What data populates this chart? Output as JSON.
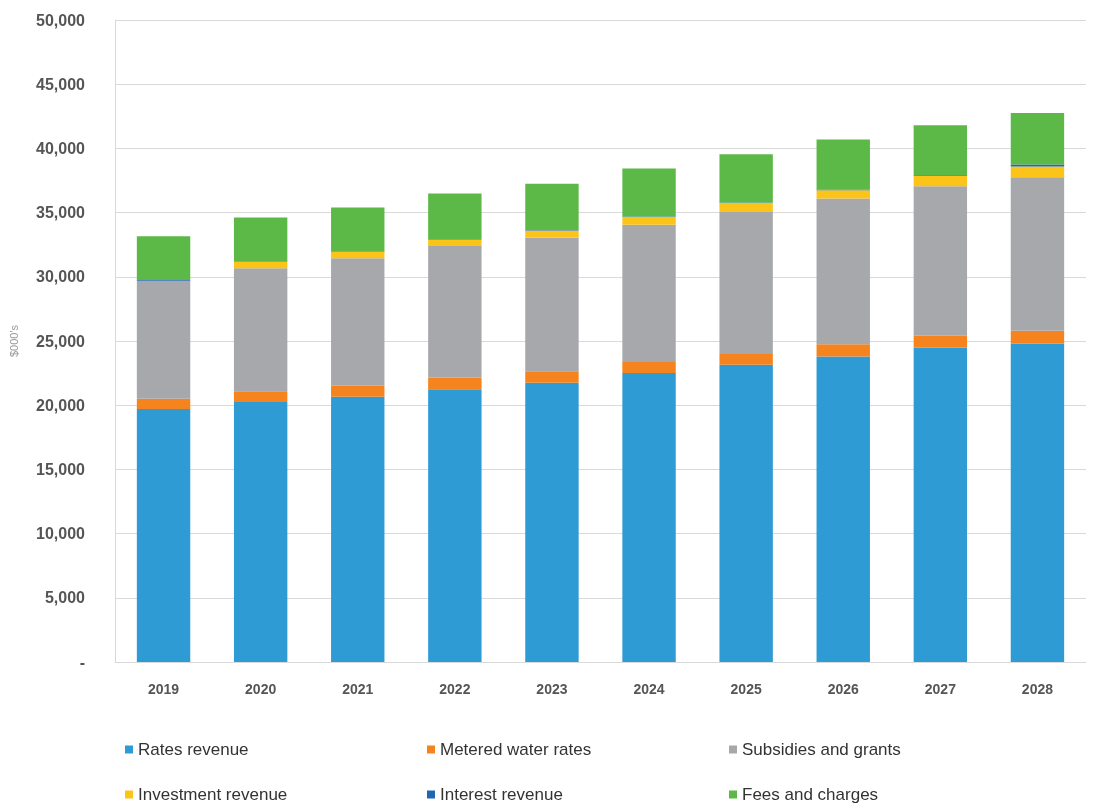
{
  "chart_data": {
    "type": "bar",
    "stacked": true,
    "ylabel": "$000's",
    "categories": [
      "2019",
      "2020",
      "2021",
      "2022",
      "2023",
      "2024",
      "2025",
      "2026",
      "2027",
      "2028"
    ],
    "series": [
      {
        "name": "Rates revenue",
        "color": "#2f9bd5",
        "values": [
          19700,
          20250,
          20650,
          21250,
          21750,
          22500,
          23150,
          23800,
          24500,
          24800
        ]
      },
      {
        "name": "Metered water rates",
        "color": "#f5841f",
        "values": [
          800,
          830,
          860,
          900,
          900,
          870,
          830,
          950,
          900,
          1000
        ]
      },
      {
        "name": "Subsidies and grants",
        "color": "#a6a8ab",
        "values": [
          9200,
          9590,
          9940,
          10250,
          10400,
          10680,
          11060,
          11350,
          11650,
          11950
        ]
      },
      {
        "name": "Investment revenue",
        "color": "#fcc419",
        "values": [
          0,
          500,
          480,
          500,
          550,
          600,
          700,
          650,
          800,
          850
        ]
      },
      {
        "name": "Interest revenue",
        "color": "#2266b3",
        "values": [
          50,
          50,
          50,
          50,
          50,
          50,
          50,
          50,
          50,
          150
        ]
      },
      {
        "name": "Fees and charges",
        "color": "#5db947",
        "values": [
          3400,
          3400,
          3420,
          3540,
          3600,
          3740,
          3750,
          3900,
          3900,
          4000
        ]
      }
    ],
    "ylim": [
      0,
      50000
    ],
    "yticks": [
      {
        "value": 0,
        "label": "-"
      },
      {
        "value": 5000,
        "label": "5,000"
      },
      {
        "value": 10000,
        "label": "10,000"
      },
      {
        "value": 15000,
        "label": "15,000"
      },
      {
        "value": 20000,
        "label": "20,000"
      },
      {
        "value": 25000,
        "label": "25,000"
      },
      {
        "value": 30000,
        "label": "30,000"
      },
      {
        "value": 35000,
        "label": "35,000"
      },
      {
        "value": 40000,
        "label": "40,000"
      },
      {
        "value": 45000,
        "label": "45,000"
      },
      {
        "value": 50000,
        "label": "50,000"
      }
    ],
    "grid": "y",
    "legend": "bottom"
  }
}
